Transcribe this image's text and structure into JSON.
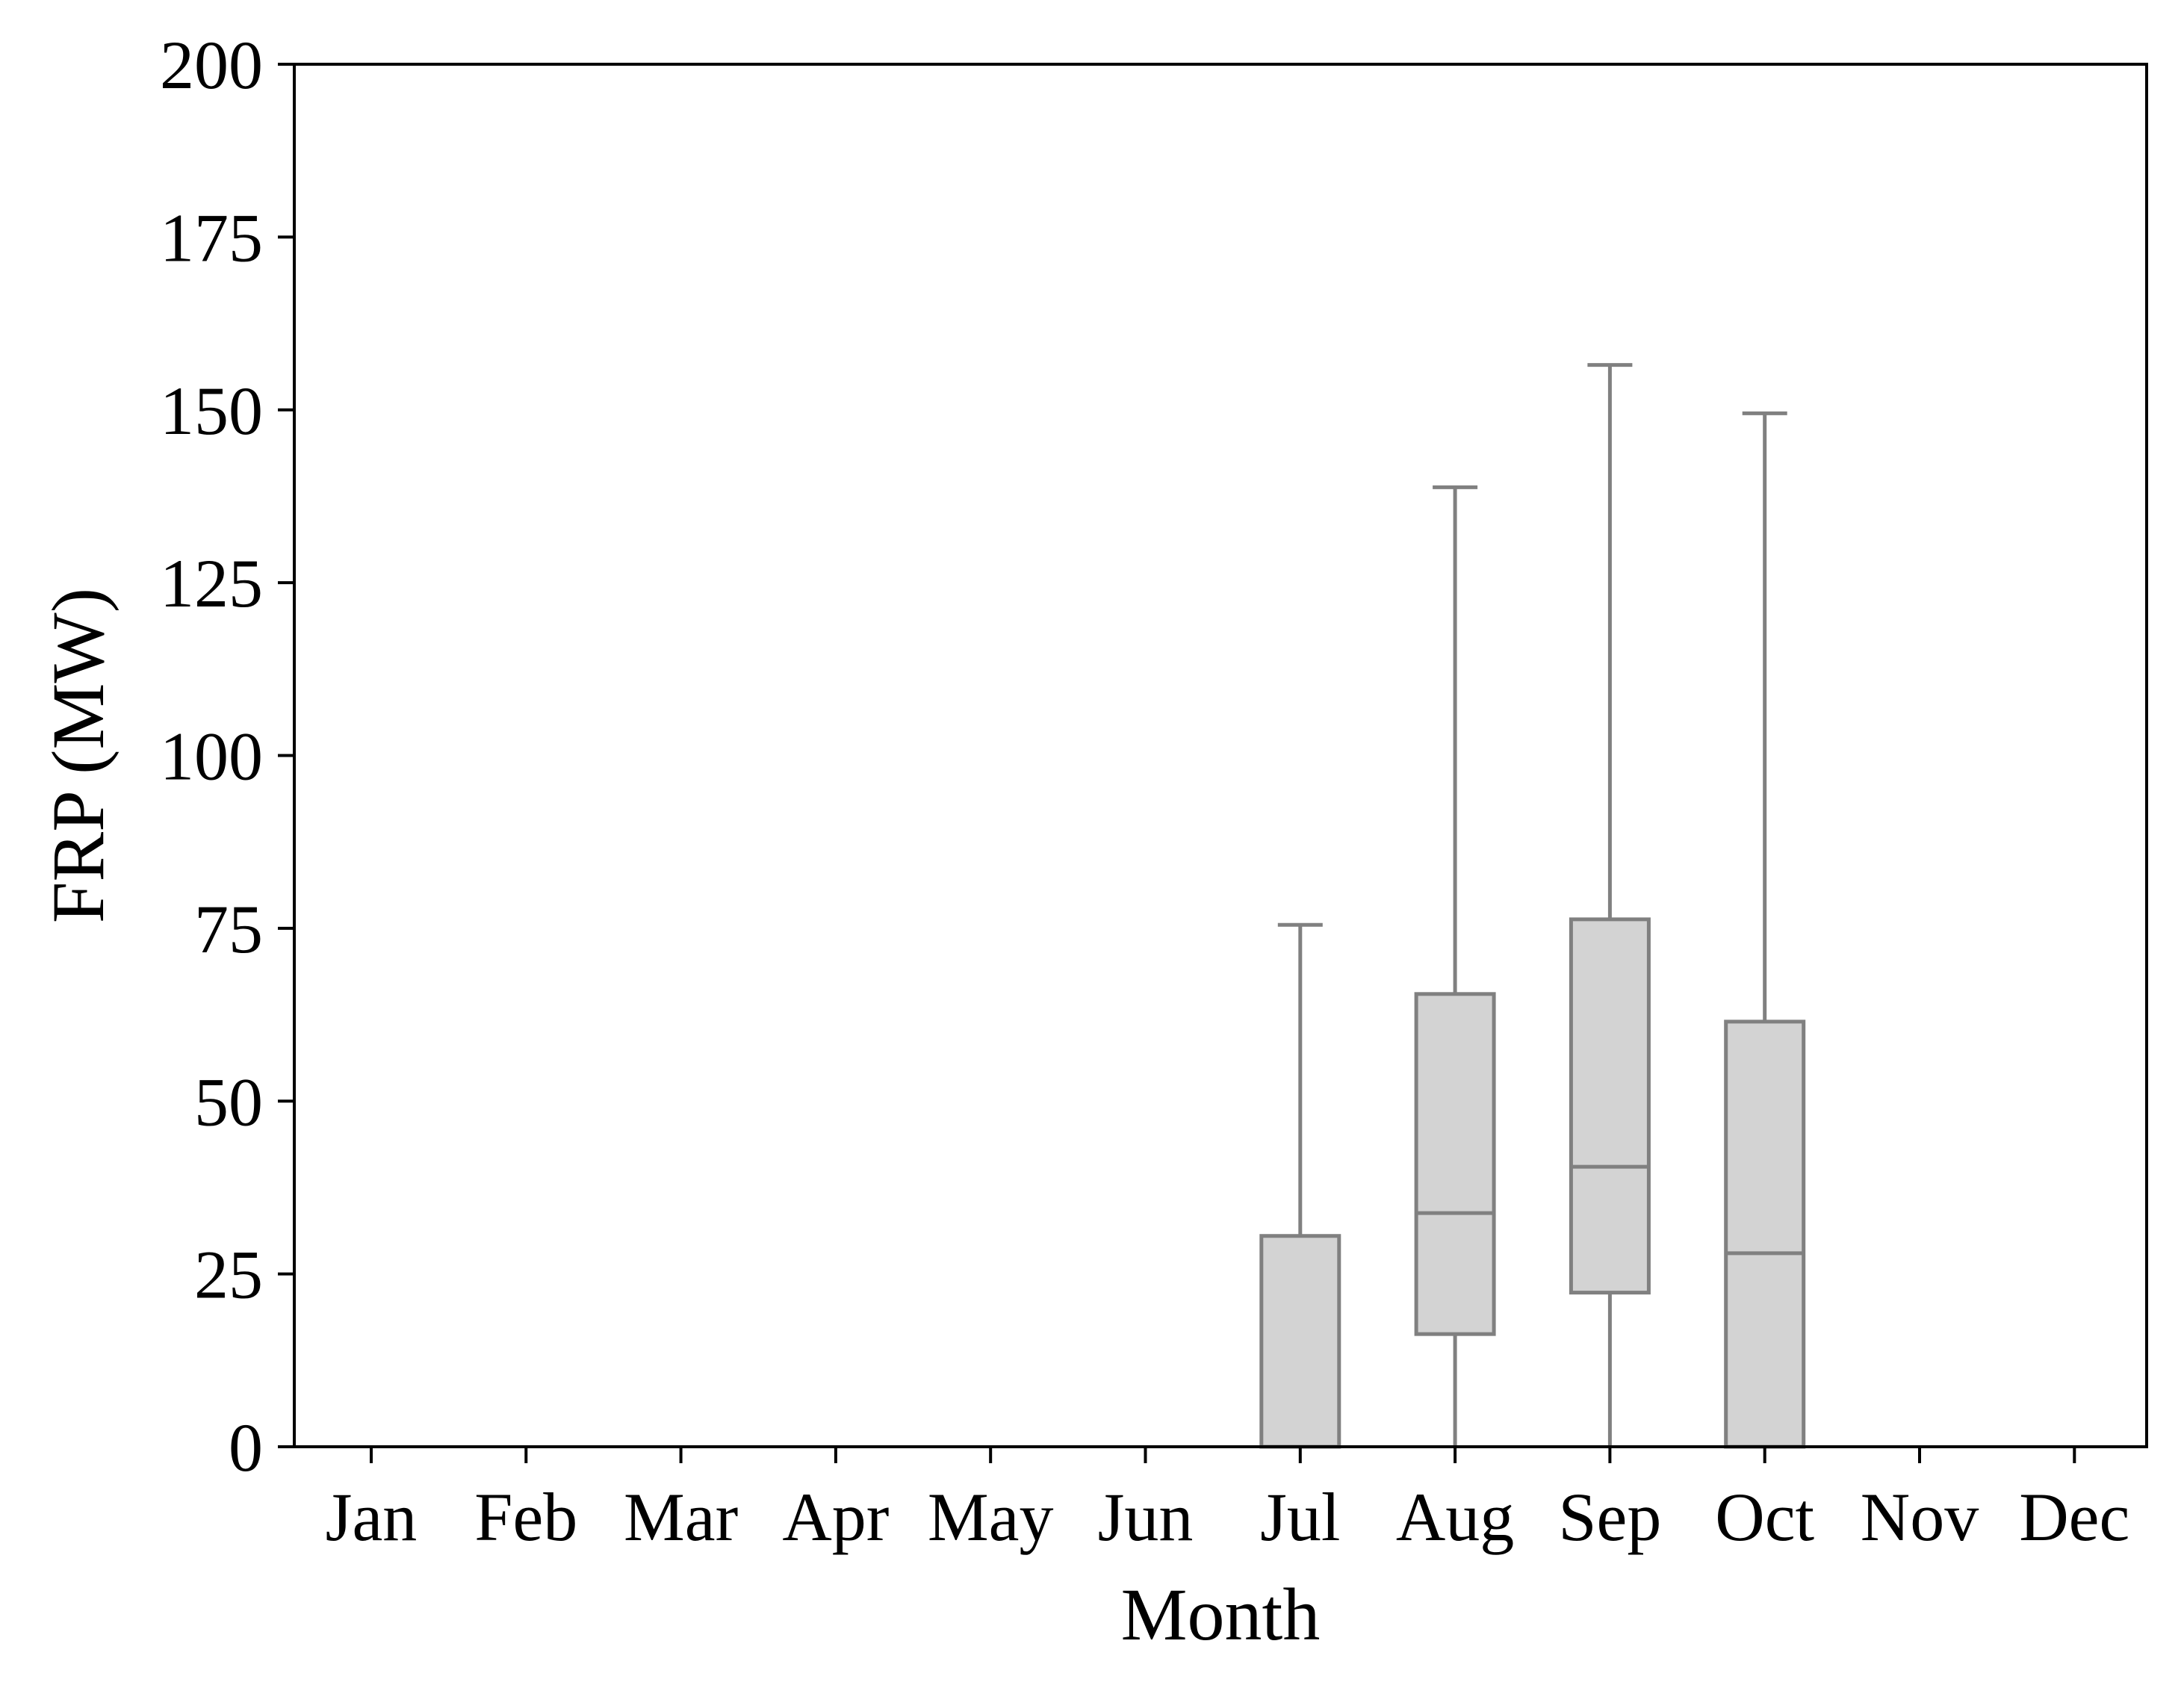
{
  "chart_data": {
    "type": "boxplot",
    "xlabel": "Month",
    "ylabel": "FRP (MW)",
    "ylim": [
      0,
      200
    ],
    "yticks": [
      0,
      25,
      50,
      75,
      100,
      125,
      150,
      175,
      200
    ],
    "ytick_labels": [
      "0",
      "25",
      "50",
      "75",
      "100",
      "125",
      "150",
      "175",
      "200"
    ],
    "categories": [
      "Jan",
      "Feb",
      "Mar",
      "Apr",
      "May",
      "Jun",
      "Jul",
      "Aug",
      "Sep",
      "Oct",
      "Nov",
      "Dec"
    ],
    "boxes": [
      {
        "category": "Jul",
        "whisker_low": 0,
        "q1": 0,
        "median": 0,
        "q3": 30.5,
        "whisker_high": 75.5
      },
      {
        "category": "Aug",
        "whisker_low": 0,
        "q1": 16.3,
        "median": 33.8,
        "q3": 65.5,
        "whisker_high": 138.8
      },
      {
        "category": "Sep",
        "whisker_low": 0,
        "q1": 22.3,
        "median": 40.5,
        "q3": 76.3,
        "whisker_high": 156.5
      },
      {
        "category": "Oct",
        "whisker_low": 0,
        "q1": 0,
        "median": 28.0,
        "q3": 61.5,
        "whisker_high": 149.5
      }
    ],
    "grid": false,
    "box_fill": "#d3d3d3",
    "box_stroke": "#808080"
  }
}
